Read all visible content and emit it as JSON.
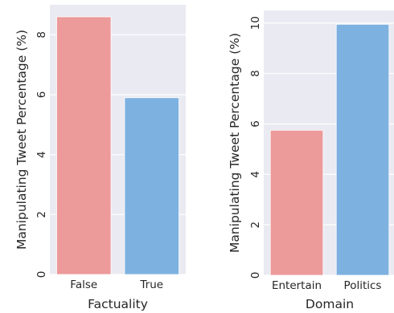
{
  "colors": {
    "background": "#eaeaf2",
    "grid": "#ffffff",
    "bar_false": "#ec9a9a",
    "bar_true": "#7db1e0"
  },
  "chart_data": [
    {
      "type": "bar",
      "categories": [
        "False",
        "True"
      ],
      "values": [
        8.6,
        5.9
      ],
      "xlabel": "Factuality",
      "ylabel": "Manipulating Tweet Percentage (%)",
      "ylim": [
        0,
        9.0
      ],
      "yticks": [
        0,
        2,
        4,
        6,
        8
      ],
      "grid": true,
      "bar_colors": [
        "#ec9a9a",
        "#7db1e0"
      ]
    },
    {
      "type": "bar",
      "categories": [
        "Entertain",
        "Politics"
      ],
      "values": [
        5.75,
        9.95
      ],
      "xlabel": "Domain",
      "ylabel": "Manipulating Tweet Percentage (%)",
      "ylim": [
        0,
        10.5
      ],
      "yticks": [
        0,
        2,
        4,
        6,
        8,
        10
      ],
      "grid": true,
      "bar_colors": [
        "#ec9a9a",
        "#7db1e0"
      ]
    }
  ]
}
